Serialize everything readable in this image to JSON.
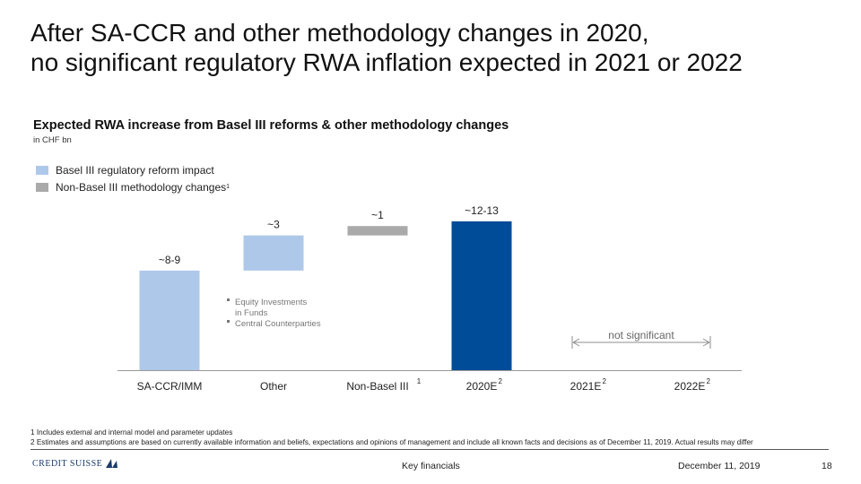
{
  "headline": {
    "line1": "After SA-CCR and other methodology changes in 2020,",
    "line2": "no significant regulatory RWA inflation expected in 2021 or 2022"
  },
  "colors": {
    "basel": "#aec8e9",
    "non_basel": "#aaaaaa",
    "total": "#004c99",
    "axis": "#999999",
    "bracket": "#8c8c8c"
  },
  "chart_data": {
    "type": "bar",
    "title": "Expected RWA increase from Basel III reforms & other methodology changes",
    "unit": "in CHF bn",
    "legend": [
      {
        "name": "Basel III regulatory reform impact",
        "sup": "",
        "color_key": "basel"
      },
      {
        "name": "Non-Basel III methodology changes",
        "sup": "1",
        "color_key": "non_basel"
      }
    ],
    "categories": [
      {
        "label": "SA-CCR/IMM",
        "sup": ""
      },
      {
        "label": "Other",
        "sup": ""
      },
      {
        "label": "Non-Basel III",
        "sup": "1"
      },
      {
        "label": "2020E",
        "sup": "2"
      },
      {
        "label": "2021E",
        "sup": "2"
      },
      {
        "label": "2022E",
        "sup": "2"
      }
    ],
    "bars": [
      {
        "category": "SA-CCR/IMM",
        "start": 0,
        "end": 8.5,
        "label": "~8-9",
        "color_key": "basel"
      },
      {
        "category": "Other",
        "start": 8.5,
        "end": 11.5,
        "label": "~3",
        "color_key": "basel"
      },
      {
        "category": "Non-Basel III",
        "start": 11.5,
        "end": 12.3,
        "label": "~1",
        "color_key": "non_basel"
      },
      {
        "category": "2020E",
        "start": 0,
        "end": 12.7,
        "label": "~12-13",
        "color_key": "total"
      }
    ],
    "ylim": [
      0,
      14
    ],
    "annotations": {
      "other_notes": [
        "Equity Investments in Funds",
        "Central Counterparties"
      ],
      "bracket_text": "not significant"
    }
  },
  "footnotes": [
    "1 Includes external and internal model and parameter updates",
    "2 Estimates and assumptions are based on currently available information and beliefs, expectations and opinions of management and include all known facts and decisions as of December 11, 2019. Actual results may differ"
  ],
  "footer": {
    "logo": "CREDIT SUISSE",
    "section": "Key financials",
    "date": "December 11, 2019",
    "page": "18"
  }
}
